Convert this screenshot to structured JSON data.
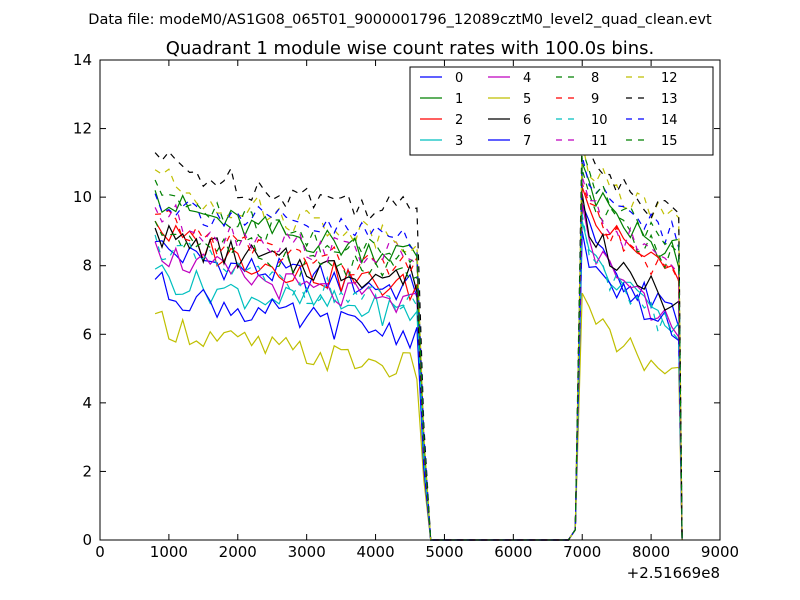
{
  "chart_data": {
    "type": "line",
    "suptitle": "Data file: modeM0/AS1G08_065T01_9000001796_12089cztM0_level2_quad_clean.evt",
    "title": "Quadrant 1 module wise count rates with 100.0s bins.",
    "xlabel": "",
    "ylabel": "",
    "x_offset_label": "+2.51669e8",
    "xlim": [
      0,
      9000
    ],
    "ylim": [
      0,
      14
    ],
    "x_ticks": [
      0,
      1000,
      2000,
      3000,
      4000,
      5000,
      6000,
      7000,
      8000,
      9000
    ],
    "x_tick_labels": [
      "0",
      "1000",
      "2000",
      "3000",
      "4000",
      "5000",
      "6000",
      "7000",
      "8000",
      "9000"
    ],
    "y_ticks": [
      0,
      2,
      4,
      6,
      8,
      10,
      12,
      14
    ],
    "y_tick_labels": [
      "0",
      "2",
      "4",
      "6",
      "8",
      "10",
      "12",
      "14"
    ],
    "grid": false,
    "legend": {
      "placement": "top-right",
      "columns": 4
    },
    "segments": [
      {
        "name": "first",
        "x_start": 800,
        "x_end": 4600,
        "step": 100
      },
      {
        "name": "second",
        "x_start": 7000,
        "x_end": 8400,
        "step": 100
      }
    ],
    "series": [
      {
        "name": "0",
        "color": "#0000ff",
        "dash": "solid",
        "seg1": {
          "start": 8.7,
          "end": 7.3
        },
        "seg2": {
          "start": 9.8,
          "end": 6.5
        }
      },
      {
        "name": "1",
        "color": "#008000",
        "dash": "solid",
        "seg1": {
          "start": 10.2,
          "end": 8.3
        },
        "seg2": {
          "start": 11.0,
          "end": 8.3
        }
      },
      {
        "name": "2",
        "color": "#ff0000",
        "dash": "solid",
        "seg1": {
          "start": 9.3,
          "end": 7.3
        },
        "seg2": {
          "start": 10.3,
          "end": 7.8
        }
      },
      {
        "name": "3",
        "color": "#00bfbf",
        "dash": "solid",
        "seg1": {
          "start": 7.9,
          "end": 6.6
        },
        "seg2": {
          "start": 9.3,
          "end": 6.3
        }
      },
      {
        "name": "4",
        "color": "#bf00bf",
        "dash": "solid",
        "seg1": {
          "start": 8.7,
          "end": 6.8
        },
        "seg2": {
          "start": 9.8,
          "end": 6.2
        }
      },
      {
        "name": "5",
        "color": "#bfbf00",
        "dash": "solid",
        "seg1": {
          "start": 6.6,
          "end": 5.0
        },
        "seg2": {
          "start": 7.2,
          "end": 4.8
        }
      },
      {
        "name": "6",
        "color": "#000000",
        "dash": "solid",
        "seg1": {
          "start": 9.1,
          "end": 7.6
        },
        "seg2": {
          "start": 10.1,
          "end": 6.8
        }
      },
      {
        "name": "7",
        "color": "#0000ff",
        "dash": "solid",
        "seg1": {
          "start": 7.6,
          "end": 6.0
        },
        "seg2": {
          "start": 9.0,
          "end": 6.1
        }
      },
      {
        "name": "8",
        "color": "#008000",
        "dash": "dashed",
        "seg1": {
          "start": 9.3,
          "end": 7.7
        },
        "seg2": {
          "start": 10.8,
          "end": 8.1
        }
      },
      {
        "name": "9",
        "color": "#ff0000",
        "dash": "dashed",
        "seg1": {
          "start": 9.5,
          "end": 7.8
        },
        "seg2": {
          "start": 10.4,
          "end": 7.6
        }
      },
      {
        "name": "10",
        "color": "#00bfbf",
        "dash": "dashed",
        "seg1": {
          "start": 8.9,
          "end": 6.8
        },
        "seg2": {
          "start": 9.5,
          "end": 6.0
        }
      },
      {
        "name": "11",
        "color": "#bf00bf",
        "dash": "dashed",
        "seg1": {
          "start": 9.7,
          "end": 8.2
        },
        "seg2": {
          "start": 10.6,
          "end": 7.9
        }
      },
      {
        "name": "12",
        "color": "#bfbf00",
        "dash": "dashed",
        "seg1": {
          "start": 10.8,
          "end": 8.8
        },
        "seg2": {
          "start": 11.6,
          "end": 9.2
        }
      },
      {
        "name": "13",
        "color": "#000000",
        "dash": "dashed",
        "seg1": {
          "start": 11.3,
          "end": 9.6
        },
        "seg2": {
          "start": 12.1,
          "end": 9.3
        }
      },
      {
        "name": "14",
        "color": "#0000ff",
        "dash": "dashed",
        "seg1": {
          "start": 10.1,
          "end": 8.8
        },
        "seg2": {
          "start": 11.2,
          "end": 8.8
        }
      },
      {
        "name": "15",
        "color": "#008000",
        "dash": "dashed",
        "seg1": {
          "start": 10.5,
          "end": 8.2
        },
        "seg2": {
          "start": 11.4,
          "end": 8.6
        }
      }
    ]
  }
}
